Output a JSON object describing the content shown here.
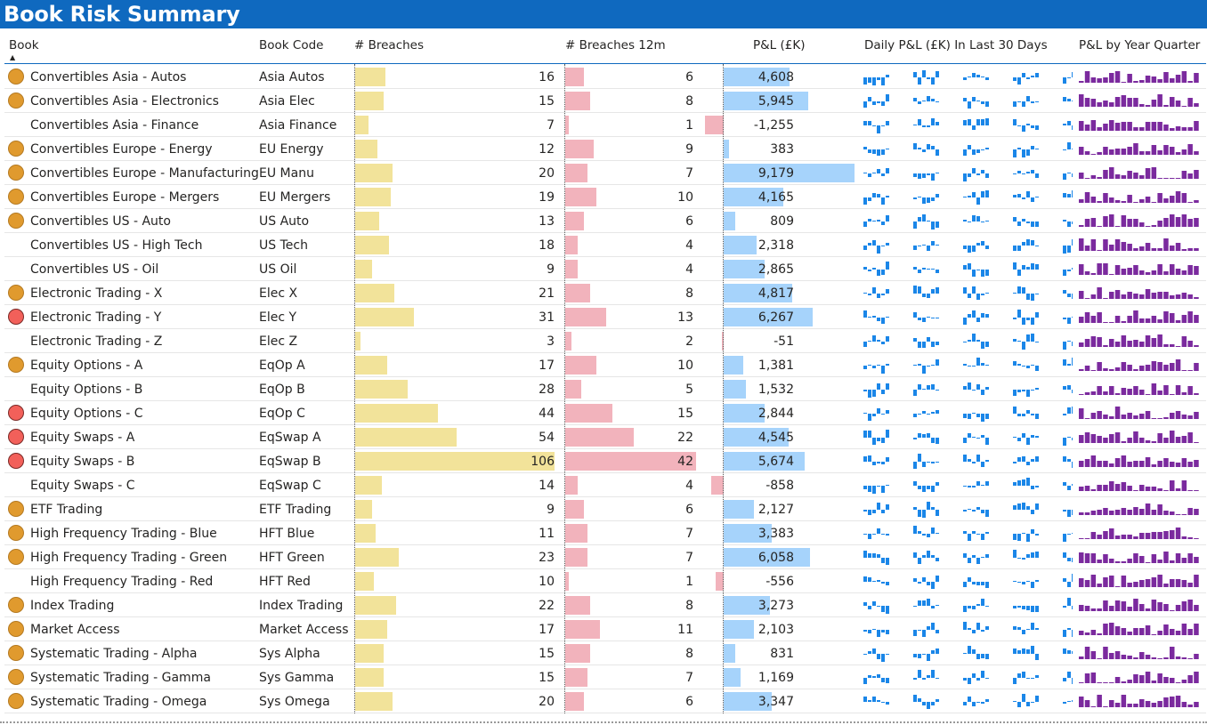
{
  "header": {
    "title": "Book Risk Summary"
  },
  "columns": {
    "book": "Book",
    "code": "Book Code",
    "breaches": "# Breaches",
    "breaches12m": "# Breaches 12m",
    "pnl": "P&L (£K)",
    "daily": "Daily P&L (£K) In Last 30 Days",
    "quarter": "P&L by Year Quarter"
  },
  "colors": {
    "amber_status": "#e09a2e",
    "red_status": "#f2605a",
    "breach_bar": "#f2e39a",
    "breach12m_bar": "#f2b3bc",
    "pnl_bar": "#a6d3fb",
    "daily_spark": "#1a86e8",
    "quarter_spark": "#7b2a9e"
  },
  "rows": [
    {
      "book": "Convertibles Asia - Autos",
      "code": "Asia Autos",
      "status": "amber",
      "breaches": 16,
      "breaches12m": 6,
      "pnl": 4608,
      "pnl_label": "4,608"
    },
    {
      "book": "Convertibles Asia - Electronics",
      "code": "Asia Elec",
      "status": "amber",
      "breaches": 15,
      "breaches12m": 8,
      "pnl": 5945,
      "pnl_label": "5,945"
    },
    {
      "book": "Convertibles Asia - Finance",
      "code": "Asia Finance",
      "status": "none",
      "breaches": 7,
      "breaches12m": 1,
      "pnl": -1255,
      "pnl_label": "-1,255"
    },
    {
      "book": "Convertibles Europe - Energy",
      "code": "EU Energy",
      "status": "amber",
      "breaches": 12,
      "breaches12m": 9,
      "pnl": 383,
      "pnl_label": "383"
    },
    {
      "book": "Convertibles Europe - Manufacturing",
      "code": "EU Manu",
      "status": "amber",
      "breaches": 20,
      "breaches12m": 7,
      "pnl": 9179,
      "pnl_label": "9,179"
    },
    {
      "book": "Convertibles Europe - Mergers",
      "code": "EU Mergers",
      "status": "amber",
      "breaches": 19,
      "breaches12m": 10,
      "pnl": 4165,
      "pnl_label": "4,165"
    },
    {
      "book": "Convertibles US - Auto",
      "code": "US Auto",
      "status": "amber",
      "breaches": 13,
      "breaches12m": 6,
      "pnl": 809,
      "pnl_label": "809"
    },
    {
      "book": "Convertibles US - High Tech",
      "code": "US Tech",
      "status": "none",
      "breaches": 18,
      "breaches12m": 4,
      "pnl": 2318,
      "pnl_label": "2,318"
    },
    {
      "book": "Convertibles US - Oil",
      "code": "US Oil",
      "status": "none",
      "breaches": 9,
      "breaches12m": 4,
      "pnl": 2865,
      "pnl_label": "2,865"
    },
    {
      "book": "Electronic Trading - X",
      "code": "Elec X",
      "status": "amber",
      "breaches": 21,
      "breaches12m": 8,
      "pnl": 4817,
      "pnl_label": "4,817"
    },
    {
      "book": "Electronic Trading - Y",
      "code": "Elec Y",
      "status": "red",
      "breaches": 31,
      "breaches12m": 13,
      "pnl": 6267,
      "pnl_label": "6,267"
    },
    {
      "book": "Electronic Trading - Z",
      "code": "Elec Z",
      "status": "none",
      "breaches": 3,
      "breaches12m": 2,
      "pnl": -51,
      "pnl_label": "-51"
    },
    {
      "book": "Equity Options - A",
      "code": "EqOp A",
      "status": "amber",
      "breaches": 17,
      "breaches12m": 10,
      "pnl": 1381,
      "pnl_label": "1,381"
    },
    {
      "book": "Equity Options - B",
      "code": "EqOp B",
      "status": "none",
      "breaches": 28,
      "breaches12m": 5,
      "pnl": 1532,
      "pnl_label": "1,532"
    },
    {
      "book": "Equity Options - C",
      "code": "EqOp C",
      "status": "red",
      "breaches": 44,
      "breaches12m": 15,
      "pnl": 2844,
      "pnl_label": "2,844"
    },
    {
      "book": "Equity Swaps - A",
      "code": "EqSwap A",
      "status": "red",
      "breaches": 54,
      "breaches12m": 22,
      "pnl": 4545,
      "pnl_label": "4,545"
    },
    {
      "book": "Equity Swaps - B",
      "code": "EqSwap B",
      "status": "red",
      "breaches": 106,
      "breaches12m": 42,
      "pnl": 5674,
      "pnl_label": "5,674"
    },
    {
      "book": "Equity Swaps - C",
      "code": "EqSwap C",
      "status": "none",
      "breaches": 14,
      "breaches12m": 4,
      "pnl": -858,
      "pnl_label": "-858"
    },
    {
      "book": "ETF Trading",
      "code": "ETF Trading",
      "status": "amber",
      "breaches": 9,
      "breaches12m": 6,
      "pnl": 2127,
      "pnl_label": "2,127"
    },
    {
      "book": "High Frequency Trading - Blue",
      "code": "HFT Blue",
      "status": "amber",
      "breaches": 11,
      "breaches12m": 7,
      "pnl": 3383,
      "pnl_label": "3,383"
    },
    {
      "book": "High Frequency Trading - Green",
      "code": "HFT Green",
      "status": "amber",
      "breaches": 23,
      "breaches12m": 7,
      "pnl": 6058,
      "pnl_label": "6,058"
    },
    {
      "book": "High Frequency Trading - Red",
      "code": "HFT Red",
      "status": "none",
      "breaches": 10,
      "breaches12m": 1,
      "pnl": -556,
      "pnl_label": "-556"
    },
    {
      "book": "Index Trading",
      "code": "Index Trading",
      "status": "amber",
      "breaches": 22,
      "breaches12m": 8,
      "pnl": 3273,
      "pnl_label": "3,273"
    },
    {
      "book": "Market Access",
      "code": "Market Access",
      "status": "amber",
      "breaches": 17,
      "breaches12m": 11,
      "pnl": 2103,
      "pnl_label": "2,103"
    },
    {
      "book": "Systematic Trading - Alpha",
      "code": "Sys Alpha",
      "status": "amber",
      "breaches": 15,
      "breaches12m": 8,
      "pnl": 831,
      "pnl_label": "831"
    },
    {
      "book": "Systematic Trading - Gamma",
      "code": "Sys Gamma",
      "status": "amber",
      "breaches": 15,
      "breaches12m": 7,
      "pnl": 1169,
      "pnl_label": "1,169"
    },
    {
      "book": "Systematic Trading - Omega",
      "code": "Sys Omega",
      "status": "amber",
      "breaches": 20,
      "breaches12m": 6,
      "pnl": 3347,
      "pnl_label": "3,347"
    }
  ],
  "scales": {
    "breaches_max": 106,
    "breaches12m_max": 42,
    "pnl_max": 9179,
    "pnl_min": -1255
  }
}
